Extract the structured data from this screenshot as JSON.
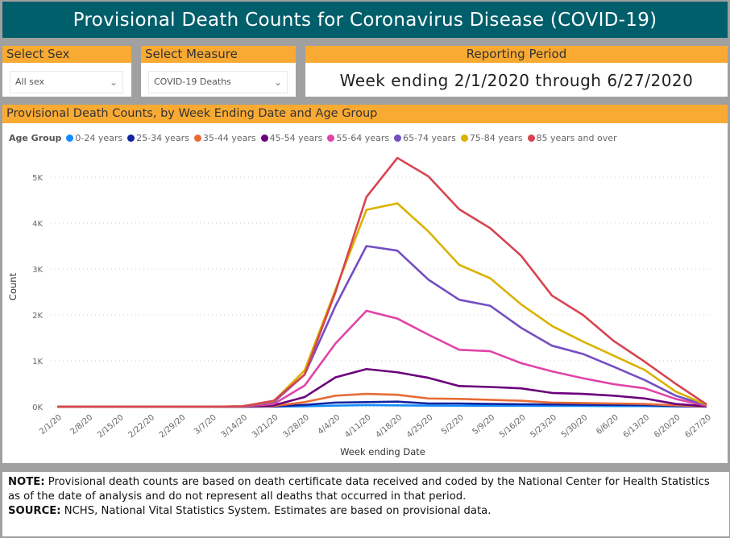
{
  "title": "Provisional Death Counts for Coronavirus Disease (COVID-19)",
  "filters": {
    "sex": {
      "label": "Select Sex",
      "value": "All sex"
    },
    "measure": {
      "label": "Select Measure",
      "value": "COVID-19 Deaths"
    },
    "period": {
      "label": "Reporting Period",
      "value": "Week ending 2/1/2020 through 6/27/2020"
    }
  },
  "chart_panel_title": "Provisional Death Counts, by Week Ending Date and Age Group",
  "colors": {
    "header": "#005f6b",
    "accent": "#f9aa33",
    "background": "#a0a0a0"
  },
  "chart_data": {
    "type": "line",
    "legend_title": "Age Group",
    "legend_position": "top-left",
    "xlabel": "Week ending Date",
    "ylabel": "Count",
    "ylim": [
      0,
      5500
    ],
    "yticks": [
      0,
      1000,
      2000,
      3000,
      4000,
      5000
    ],
    "ytick_labels": [
      "0K",
      "1K",
      "2K",
      "3K",
      "4K",
      "5K"
    ],
    "grid": true,
    "x": [
      "2/1/20",
      "2/8/20",
      "2/15/20",
      "2/22/20",
      "2/29/20",
      "3/7/20",
      "3/14/20",
      "3/21/20",
      "3/28/20",
      "4/4/20",
      "4/11/20",
      "4/18/20",
      "4/25/20",
      "5/2/20",
      "5/9/20",
      "5/16/20",
      "5/23/20",
      "5/30/20",
      "6/6/20",
      "6/13/20",
      "6/20/20",
      "6/27/20"
    ],
    "series": [
      {
        "name": "0-24 years",
        "color": "#118dff",
        "values": [
          0,
          0,
          0,
          0,
          0,
          0,
          0,
          2,
          10,
          25,
          35,
          30,
          25,
          22,
          20,
          20,
          18,
          18,
          15,
          15,
          8,
          2
        ]
      },
      {
        "name": "25-34 years",
        "color": "#12239e",
        "values": [
          0,
          0,
          0,
          0,
          0,
          0,
          1,
          5,
          40,
          90,
          100,
          110,
          70,
          70,
          60,
          55,
          50,
          45,
          40,
          35,
          15,
          3
        ]
      },
      {
        "name": "35-44 years",
        "color": "#e66c37",
        "values": [
          0,
          0,
          0,
          0,
          0,
          0,
          2,
          15,
          100,
          240,
          280,
          260,
          180,
          170,
          150,
          130,
          90,
          80,
          70,
          60,
          30,
          5
        ]
      },
      {
        "name": "45-54 years",
        "color": "#6b007b",
        "values": [
          0,
          0,
          0,
          0,
          0,
          0,
          3,
          30,
          210,
          640,
          820,
          750,
          630,
          450,
          430,
          400,
          300,
          280,
          240,
          180,
          60,
          10
        ]
      },
      {
        "name": "55-64 years",
        "color": "#e044a7",
        "values": [
          0,
          0,
          0,
          0,
          0,
          0,
          5,
          60,
          460,
          1380,
          2090,
          1920,
          1570,
          1240,
          1210,
          950,
          770,
          620,
          490,
          400,
          170,
          20
        ]
      },
      {
        "name": "65-74 years",
        "color": "#744ec2",
        "values": [
          0,
          0,
          0,
          0,
          0,
          0,
          8,
          100,
          700,
          2200,
          3500,
          3400,
          2770,
          2330,
          2200,
          1720,
          1330,
          1150,
          870,
          580,
          240,
          30
        ]
      },
      {
        "name": "75-84 years",
        "color": "#d9b300",
        "values": [
          0,
          0,
          0,
          0,
          0,
          0,
          10,
          120,
          790,
          2550,
          4290,
          4430,
          3820,
          3090,
          2800,
          2230,
          1760,
          1420,
          1110,
          800,
          330,
          40
        ]
      },
      {
        "name": "85 years and over",
        "color": "#d64550",
        "values": [
          0,
          0,
          0,
          0,
          0,
          0,
          10,
          130,
          700,
          2500,
          4570,
          5420,
          5020,
          4300,
          3890,
          3290,
          2420,
          2000,
          1430,
          980,
          500,
          50
        ]
      }
    ]
  },
  "note": {
    "label": "NOTE:",
    "text": " Provisional death counts are based on death certificate data received and coded by the National Center for Health Statistics as of the date of analysis and do not represent all deaths that occurred in that period."
  },
  "source": {
    "label": "SOURCE:",
    "text": " NCHS, National Vital Statistics System. Estimates are based on provisional data."
  }
}
